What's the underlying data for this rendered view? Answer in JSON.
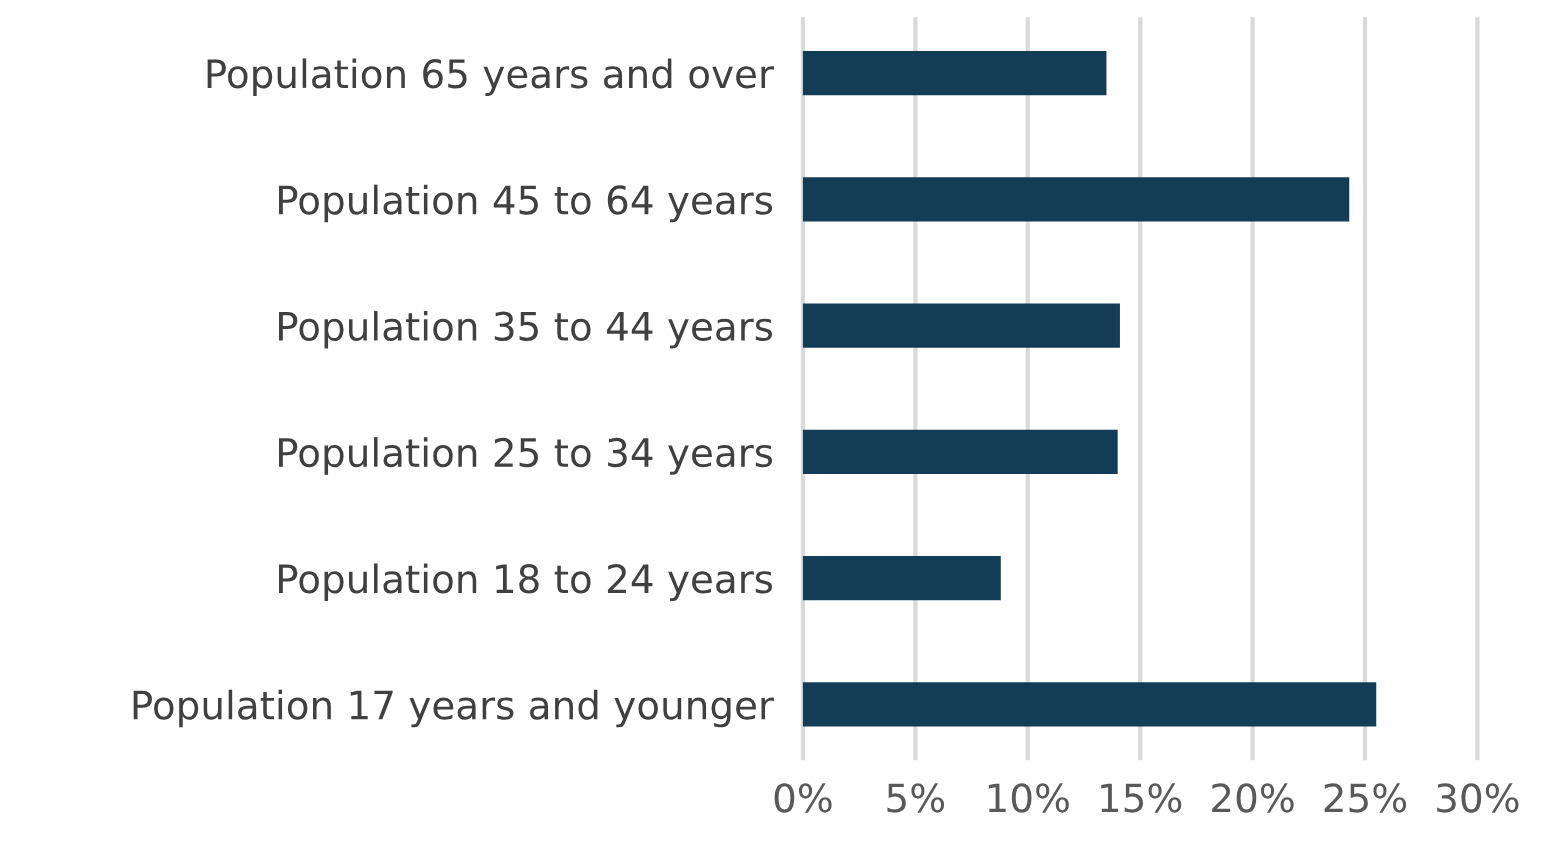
{
  "chart_data": {
    "type": "bar",
    "orientation": "horizontal",
    "categories": [
      "Population 65 years and over",
      "Population 45 to 64 years",
      "Population 35 to 44 years",
      "Population 25 to 34 years",
      "Population 18 to 24 years",
      "Population 17 years and younger"
    ],
    "series": [
      {
        "color": "#133d57",
        "values": [
          13.5,
          24.3,
          14.1,
          14.0,
          8.8,
          25.5
        ]
      }
    ],
    "xlim": [
      0,
      30
    ],
    "xticks": [
      {
        "value": 0,
        "label": "0%"
      },
      {
        "value": 5,
        "label": "5%"
      },
      {
        "value": 10,
        "label": "10%"
      },
      {
        "value": 15,
        "label": "15%"
      },
      {
        "value": 20,
        "label": "20%"
      },
      {
        "value": 25,
        "label": "25%"
      },
      {
        "value": 30,
        "label": "30%"
      }
    ],
    "grid": "x"
  }
}
